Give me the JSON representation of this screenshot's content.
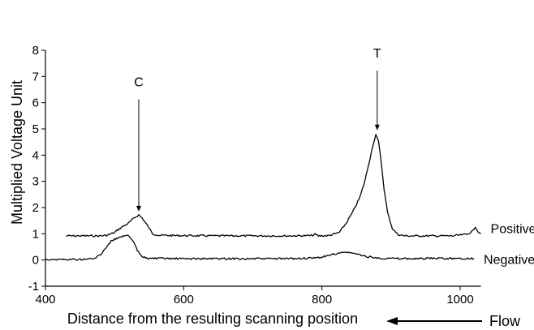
{
  "chart_data": {
    "type": "line",
    "xlabel": "Distance from the resulting scanning position",
    "ylabel": "Multiplied Voltage Unit",
    "xlim": [
      400,
      1030
    ],
    "ylim": [
      -1,
      8
    ],
    "xticks": [
      400,
      600,
      800,
      1000
    ],
    "yticks": [
      -1,
      0,
      1,
      2,
      3,
      4,
      5,
      6,
      7,
      8
    ],
    "grid": false,
    "flow_label": "Flow",
    "annotations": [
      {
        "text": "C",
        "x": 535,
        "y_from": 6.5,
        "y_to": 1.6
      },
      {
        "text": "T",
        "x": 880,
        "y_from": 7.6,
        "y_to": 4.7
      }
    ],
    "series": [
      {
        "name": "Positive",
        "color": "#000000",
        "points": [
          [
            430,
            0.92
          ],
          [
            460,
            0.92
          ],
          [
            480,
            0.92
          ],
          [
            490,
            0.95
          ],
          [
            500,
            1.05
          ],
          [
            510,
            1.25
          ],
          [
            520,
            1.4
          ],
          [
            528,
            1.6
          ],
          [
            535,
            1.72
          ],
          [
            540,
            1.6
          ],
          [
            548,
            1.3
          ],
          [
            555,
            1.0
          ],
          [
            565,
            0.94
          ],
          [
            600,
            0.93
          ],
          [
            650,
            0.92
          ],
          [
            700,
            0.92
          ],
          [
            750,
            0.92
          ],
          [
            785,
            0.93
          ],
          [
            790,
            0.98
          ],
          [
            795,
            0.92
          ],
          [
            810,
            0.93
          ],
          [
            825,
            1.05
          ],
          [
            835,
            1.4
          ],
          [
            845,
            1.85
          ],
          [
            855,
            2.4
          ],
          [
            862,
            3.0
          ],
          [
            868,
            3.7
          ],
          [
            874,
            4.4
          ],
          [
            878,
            4.78
          ],
          [
            882,
            4.5
          ],
          [
            886,
            3.7
          ],
          [
            890,
            2.7
          ],
          [
            895,
            1.8
          ],
          [
            902,
            1.2
          ],
          [
            910,
            0.97
          ],
          [
            920,
            0.92
          ],
          [
            950,
            0.92
          ],
          [
            990,
            0.92
          ],
          [
            1010,
            0.98
          ],
          [
            1018,
            1.1
          ],
          [
            1022,
            1.28
          ],
          [
            1026,
            1.08
          ],
          [
            1030,
            1.0
          ]
        ]
      },
      {
        "name": "Negative",
        "color": "#000000",
        "points": [
          [
            400,
            0.02
          ],
          [
            450,
            0.02
          ],
          [
            470,
            0.05
          ],
          [
            480,
            0.2
          ],
          [
            488,
            0.5
          ],
          [
            495,
            0.72
          ],
          [
            503,
            0.82
          ],
          [
            510,
            0.9
          ],
          [
            516,
            0.95
          ],
          [
            522,
            0.88
          ],
          [
            528,
            0.65
          ],
          [
            533,
            0.35
          ],
          [
            540,
            0.12
          ],
          [
            550,
            0.06
          ],
          [
            600,
            0.05
          ],
          [
            650,
            0.05
          ],
          [
            700,
            0.05
          ],
          [
            750,
            0.05
          ],
          [
            790,
            0.07
          ],
          [
            805,
            0.14
          ],
          [
            820,
            0.24
          ],
          [
            835,
            0.3
          ],
          [
            848,
            0.24
          ],
          [
            862,
            0.15
          ],
          [
            880,
            0.07
          ],
          [
            920,
            0.05
          ],
          [
            960,
            0.06
          ],
          [
            1000,
            0.06
          ],
          [
            1020,
            0.06
          ]
        ]
      }
    ]
  }
}
